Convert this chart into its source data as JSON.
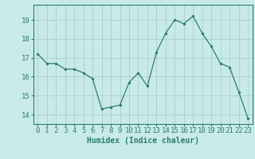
{
  "xlabel": "Humidex (Indice chaleur)",
  "x": [
    0,
    1,
    2,
    3,
    4,
    5,
    6,
    7,
    8,
    9,
    10,
    11,
    12,
    13,
    14,
    15,
    16,
    17,
    18,
    19,
    20,
    21,
    22,
    23
  ],
  "y": [
    17.2,
    16.7,
    16.7,
    16.4,
    16.4,
    16.2,
    15.9,
    14.3,
    14.4,
    14.5,
    15.7,
    16.2,
    15.5,
    17.3,
    18.3,
    19.0,
    18.8,
    19.2,
    18.3,
    17.6,
    16.7,
    16.5,
    15.2,
    13.8
  ],
  "line_color": "#2d7d6e",
  "bg_color": "#c8eaea",
  "grid_color": "#aacece",
  "ylim": [
    13.5,
    19.8
  ],
  "xlim": [
    -0.5,
    23.5
  ],
  "yticks": [
    14,
    15,
    16,
    17,
    18,
    19
  ],
  "xticks": [
    0,
    1,
    2,
    3,
    4,
    5,
    6,
    7,
    8,
    9,
    10,
    11,
    12,
    13,
    14,
    15,
    16,
    17,
    18,
    19,
    20,
    21,
    22,
    23
  ],
  "xlabel_fontsize": 7,
  "tick_fontsize": 6.5
}
